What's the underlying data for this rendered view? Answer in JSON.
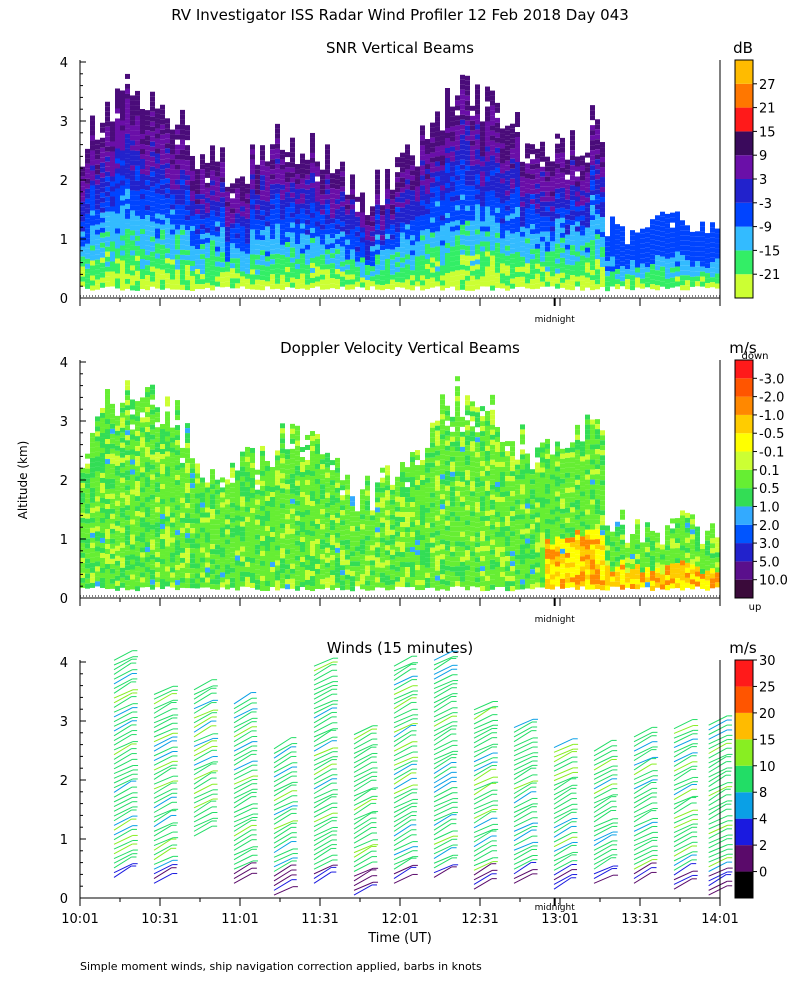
{
  "figure": {
    "title": "RV Investigator ISS Radar Wind Profiler  12 Feb 2018 Day 043",
    "ylabel": "Altitude (km)",
    "xlabel": "Time (UT)",
    "footnote": "Simple moment winds, ship navigation correction applied, barbs in knots",
    "midnight_label": "midnight"
  },
  "chart_data": [
    {
      "type": "heatmap",
      "title": "SNR Vertical Beams",
      "units": "dB",
      "x": {
        "range": [
          "10:01",
          "14:01"
        ]
      },
      "y": {
        "label": "Altitude (km)",
        "range": [
          0,
          4
        ],
        "ticks": [
          "0",
          "1",
          "2",
          "3",
          "4"
        ]
      },
      "colorbar": {
        "labels": [
          "-21",
          "-15",
          "-9",
          "-3",
          "3",
          "9",
          "15",
          "21",
          "27"
        ],
        "colors": [
          "#ccff33",
          "#33ee66",
          "#33bbff",
          "#0044ff",
          "#2222cc",
          "#6a0fa8",
          "#3a0a5c",
          "#ff1a1a",
          "#ff7700",
          "#ffbb00"
        ]
      },
      "cell_colors": [
        "#ccff33",
        "#33ee66",
        "#33bbff",
        "#0044ff",
        "#2222cc",
        "#6a0fa8",
        "#4a0c7a"
      ]
    },
    {
      "type": "heatmap",
      "title": "Doppler Velocity Vertical Beams",
      "units": "m/s",
      "x": {
        "range": [
          "10:01",
          "14:01"
        ]
      },
      "y": {
        "label": "Altitude (km)",
        "range": [
          0,
          4
        ],
        "ticks": [
          "0",
          "1",
          "2",
          "3",
          "4"
        ]
      },
      "colorbar": {
        "top_label": "down",
        "bottom_label": "up",
        "labels": [
          "10.0",
          "5.0",
          "3.0",
          "2.0",
          "1.0",
          "0.5",
          "0.1",
          "-0.1",
          "-0.5",
          "-1.0",
          "-2.0",
          "-3.0"
        ],
        "colors": [
          "#3a0a3a",
          "#5a0f8c",
          "#2222cc",
          "#0055ff",
          "#33aaff",
          "#33dd55",
          "#66ee33",
          "#ccff33",
          "#ffff00",
          "#ffcc00",
          "#ff8800",
          "#ff5500",
          "#ff1a1a"
        ]
      },
      "cell_colors": [
        "#66ee33",
        "#33dd55",
        "#ccff33",
        "#ffff00",
        "#ffcc00",
        "#ff8800",
        "#33aaff"
      ]
    },
    {
      "type": "scatter",
      "title": "Winds (15 minutes)",
      "units": "m/s",
      "x": {
        "label": "Time (UT)",
        "range": [
          "10:01",
          "14:01"
        ],
        "ticks": [
          "10:01",
          "10:31",
          "11:01",
          "11:31",
          "12:01",
          "12:31",
          "13:01",
          "13:31",
          "14:01"
        ]
      },
      "y": {
        "label": "Altitude (km)",
        "range": [
          0,
          4
        ],
        "ticks": [
          "0",
          "1",
          "2",
          "3",
          "4"
        ]
      },
      "colorbar": {
        "labels": [
          "0",
          "2",
          "4",
          "8",
          "10",
          "15",
          "20",
          "25",
          "30"
        ],
        "colors": [
          "#000000",
          "#5a0a6a",
          "#1a1ae0",
          "#0aa0e6",
          "#22dd66",
          "#88ee22",
          "#ffbb00",
          "#ff5500",
          "#ff1a1a"
        ]
      },
      "profiles": [
        {
          "time": "10:16",
          "top": 4.1,
          "bottom": 0.4
        },
        {
          "time": "10:31",
          "top": 3.5,
          "bottom": 0.3
        },
        {
          "time": "10:46",
          "top": 3.6,
          "bottom": 1.1
        },
        {
          "time": "11:01",
          "top": 3.3,
          "bottom": 0.3
        },
        {
          "time": "11:16",
          "top": 2.6,
          "bottom": 0.1
        },
        {
          "time": "11:31",
          "top": 4.0,
          "bottom": 0.3
        },
        {
          "time": "11:46",
          "top": 2.8,
          "bottom": 0.1
        },
        {
          "time": "12:01",
          "top": 4.0,
          "bottom": 0.3
        },
        {
          "time": "12:16",
          "top": 4.1,
          "bottom": 0.4
        },
        {
          "time": "12:31",
          "top": 3.2,
          "bottom": 0.2
        },
        {
          "time": "12:46",
          "top": 2.9,
          "bottom": 0.3
        },
        {
          "time": "13:01",
          "top": 2.6,
          "bottom": 0.2
        },
        {
          "time": "13:16",
          "top": 2.5,
          "bottom": 0.3
        },
        {
          "time": "13:31",
          "top": 2.8,
          "bottom": 0.3
        },
        {
          "time": "13:46",
          "top": 2.9,
          "bottom": 0.2
        },
        {
          "time": "13:59",
          "top": 3.0,
          "bottom": 0.1
        }
      ]
    }
  ]
}
